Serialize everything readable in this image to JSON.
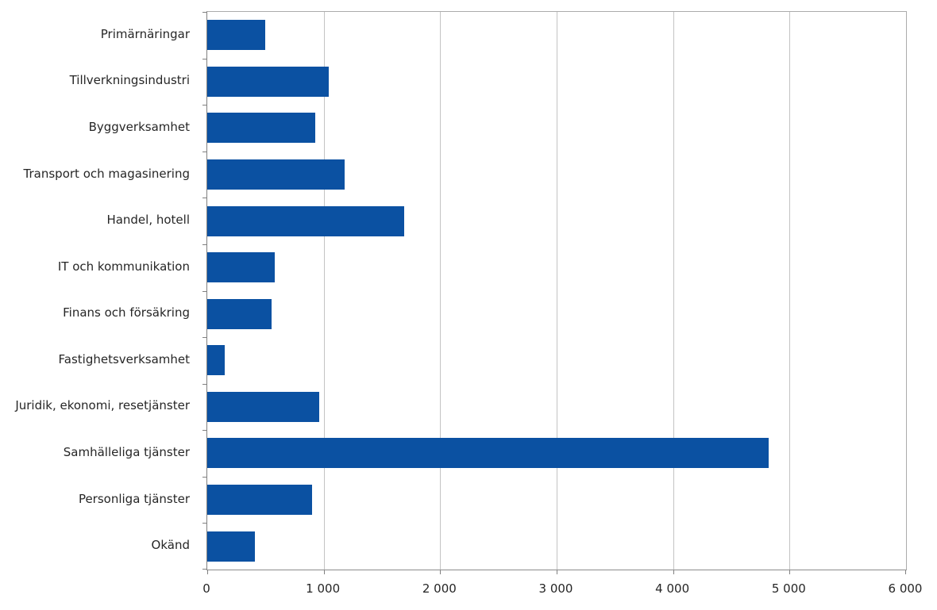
{
  "chart_data": {
    "type": "bar",
    "orientation": "horizontal",
    "title": "",
    "xlabel": "",
    "ylabel": "",
    "categories": [
      "Primärnäringar",
      "Tillverkningsindustri",
      "Byggverksamhet",
      "Transport och magasinering",
      "Handel, hotell",
      "IT och kommunikation",
      "Finans och försäkring",
      "Fastighetsverksamhet",
      "Juridik, ekonomi, resetjänster",
      "Samhälleliga tjänster",
      "Personliga tjänster",
      "Okänd"
    ],
    "values": [
      500,
      1040,
      930,
      1180,
      1690,
      580,
      550,
      150,
      960,
      4820,
      900,
      410
    ],
    "xlim": [
      0,
      6000
    ],
    "xticks": [
      0,
      1000,
      2000,
      3000,
      4000,
      5000,
      6000
    ],
    "xtick_labels": [
      "0",
      "1 000",
      "2 000",
      "3 000",
      "4 000",
      "5 000",
      "6 000"
    ],
    "grid": true,
    "legend": false,
    "colors": {
      "bar": "#0b51a2",
      "gridline": "#c3c3c3",
      "axis": "#808080",
      "text": "#262626",
      "background": "#ffffff"
    }
  }
}
